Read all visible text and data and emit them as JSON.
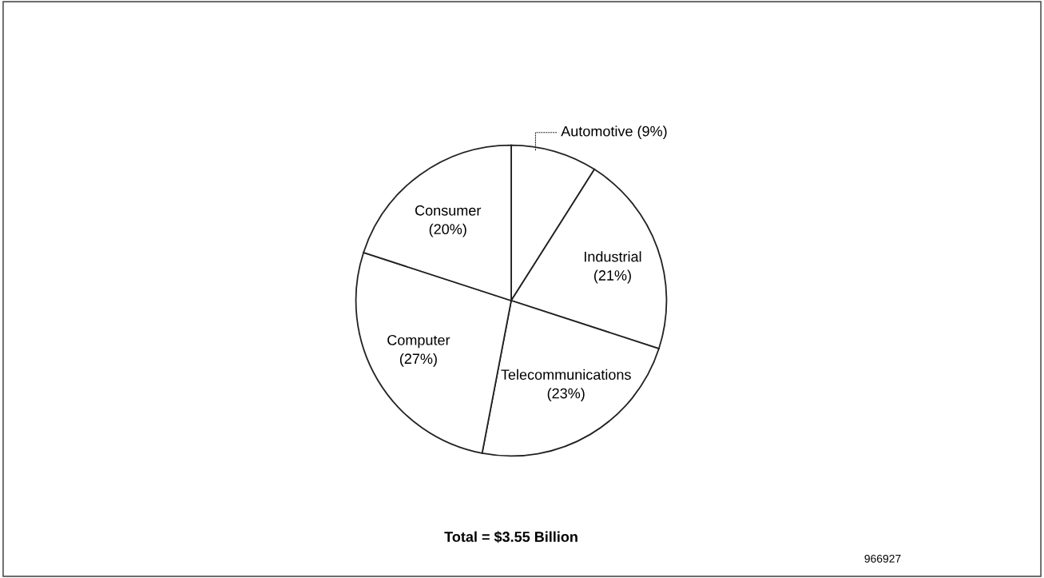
{
  "chart_data": {
    "type": "pie",
    "categories": [
      "Automotive",
      "Industrial",
      "Telecommunications",
      "Computer",
      "Consumer"
    ],
    "values": [
      9,
      21,
      23,
      27,
      20
    ],
    "value_labels": [
      "(9%)",
      "(21%)",
      "(23%)",
      "(27%)",
      "(20%)"
    ],
    "colors": [
      "#ffffff",
      "#ffffff",
      "#ffffff",
      "#ffffff",
      "#ffffff"
    ],
    "legend": false,
    "annotations": [
      "Total = $3.55 Billion",
      "966927"
    ]
  }
}
